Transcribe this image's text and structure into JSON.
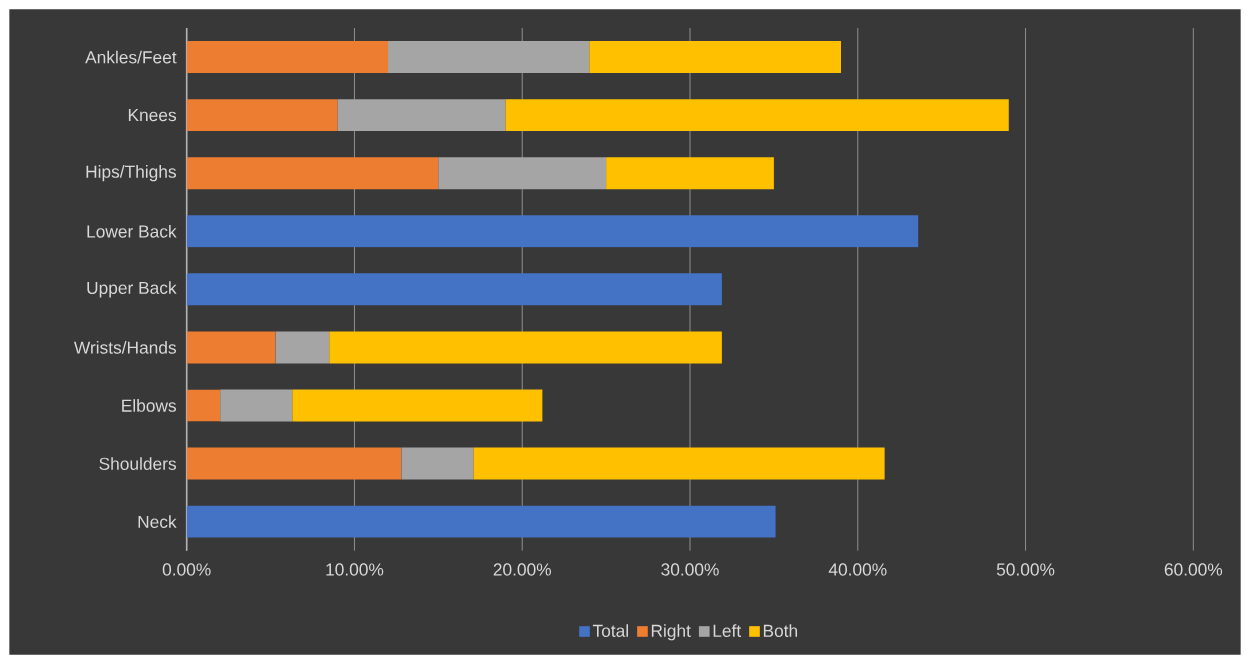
{
  "chart_data": {
    "type": "bar",
    "orientation": "horizontal",
    "stacked": true,
    "categories": [
      "Ankles/Feet",
      "Knees",
      "Hips/Thighs",
      "Lower Back",
      "Upper Back",
      "Wrists/Hands",
      "Elbows",
      "Shoulders",
      "Neck"
    ],
    "series": [
      {
        "name": "Total",
        "color": "#4472c4",
        "values": [
          null,
          null,
          null,
          43.6,
          31.9,
          null,
          null,
          null,
          35.1
        ]
      },
      {
        "name": "Right",
        "color": "#ed7d31",
        "values": [
          12,
          9,
          15,
          null,
          null,
          5.3,
          2.0,
          12.8,
          null
        ]
      },
      {
        "name": "Left",
        "color": "#a5a5a5",
        "values": [
          12,
          10,
          10,
          null,
          null,
          3.2,
          4.3,
          4.3,
          null
        ]
      },
      {
        "name": "Both",
        "color": "#ffc000",
        "values": [
          15,
          30,
          10,
          null,
          null,
          23.4,
          14.9,
          24.5,
          null
        ]
      }
    ],
    "xlim": [
      0,
      60
    ],
    "xticks": [
      {
        "value": 0,
        "label": "0.00%"
      },
      {
        "value": 10,
        "label": "10.00%"
      },
      {
        "value": 20,
        "label": "20.00%"
      },
      {
        "value": 30,
        "label": "30.00%"
      },
      {
        "value": 40,
        "label": "40.00%"
      },
      {
        "value": 50,
        "label": "50.00%"
      },
      {
        "value": 60,
        "label": "60.00%"
      }
    ],
    "grid": "x",
    "legend": "bottom"
  }
}
